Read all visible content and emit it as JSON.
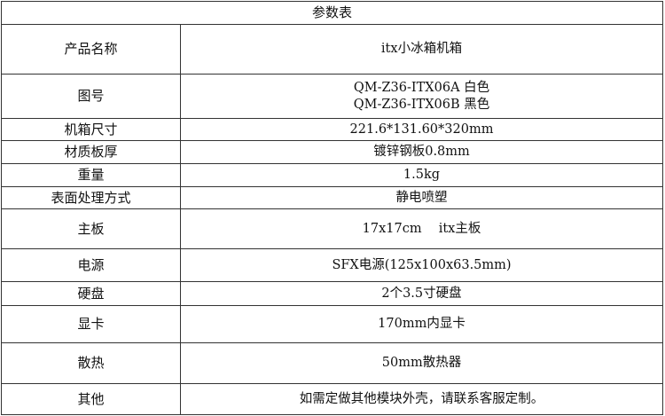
{
  "title": "参数表",
  "rows": [
    {
      "key": "产品名称",
      "value": [
        "itx小冰箱机箱"
      ]
    },
    {
      "key": "图号",
      "value": [
        "QM-Z36-ITX06A 白色",
        "QM-Z36-ITX06B 黑色"
      ]
    },
    {
      "key": "机箱尺寸",
      "value": [
        "221.6*131.60*320mm"
      ]
    },
    {
      "key": "材质板厚",
      "value": [
        "镀锌钢板0.8mm"
      ]
    },
    {
      "key": "重量",
      "value": [
        "1.5kg"
      ]
    },
    {
      "key": "表面处理方式",
      "value": [
        "静电喷塑"
      ]
    },
    {
      "key": "主板",
      "value": [
        "17x17cm　 itx主板"
      ]
    },
    {
      "key": "电源",
      "value": [
        "SFX电源(125x100x63.5mm)"
      ]
    },
    {
      "key": "硬盘",
      "value": [
        "2个3.5寸硬盘"
      ]
    },
    {
      "key": "显卡",
      "value": [
        "170mm内显卡"
      ]
    },
    {
      "key": "散热",
      "value": [
        "50mm散热器"
      ]
    },
    {
      "key": "其他",
      "value": [
        "如需定做其他模块外壳，请联系客服定制。"
      ]
    }
  ]
}
